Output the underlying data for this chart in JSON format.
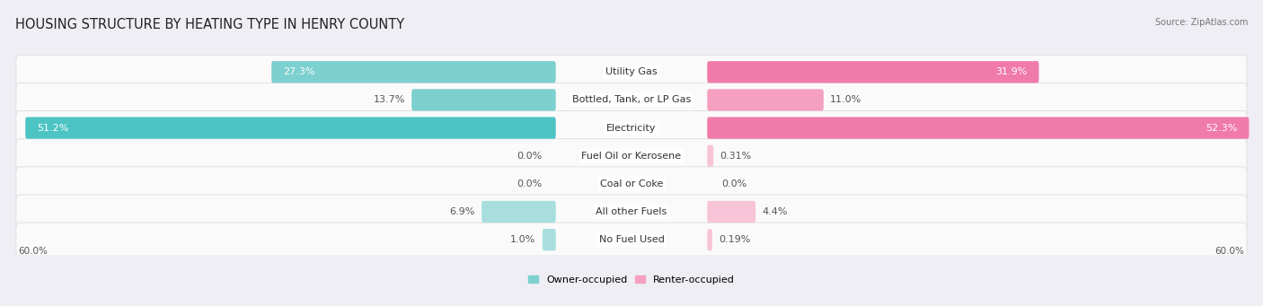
{
  "title": "HOUSING STRUCTURE BY HEATING TYPE IN HENRY COUNTY",
  "source": "Source: ZipAtlas.com",
  "categories": [
    "Utility Gas",
    "Bottled, Tank, or LP Gas",
    "Electricity",
    "Fuel Oil or Kerosene",
    "Coal or Coke",
    "All other Fuels",
    "No Fuel Used"
  ],
  "owner_values": [
    27.3,
    13.7,
    51.2,
    0.0,
    0.0,
    6.9,
    1.0
  ],
  "renter_values": [
    31.9,
    11.0,
    52.3,
    0.31,
    0.0,
    4.4,
    0.19
  ],
  "owner_color_strong": "#4DC4C4",
  "owner_color_medium": "#7DD0D0",
  "owner_color_light": "#A8DEDE",
  "renter_color_strong": "#F07AAA",
  "renter_color_medium": "#F5A0C0",
  "renter_color_light": "#F8C4D8",
  "axis_max": 60.0,
  "axis_label_left": "60.0%",
  "axis_label_right": "60.0%",
  "legend_owner": "Owner-occupied",
  "legend_renter": "Renter-occupied",
  "background_color": "#EEEEF4",
  "row_bg_color": "#FAFAFA",
  "row_border_color": "#DDDDDD",
  "title_fontsize": 10.5,
  "label_fontsize": 8.0,
  "value_fontsize": 8.0
}
